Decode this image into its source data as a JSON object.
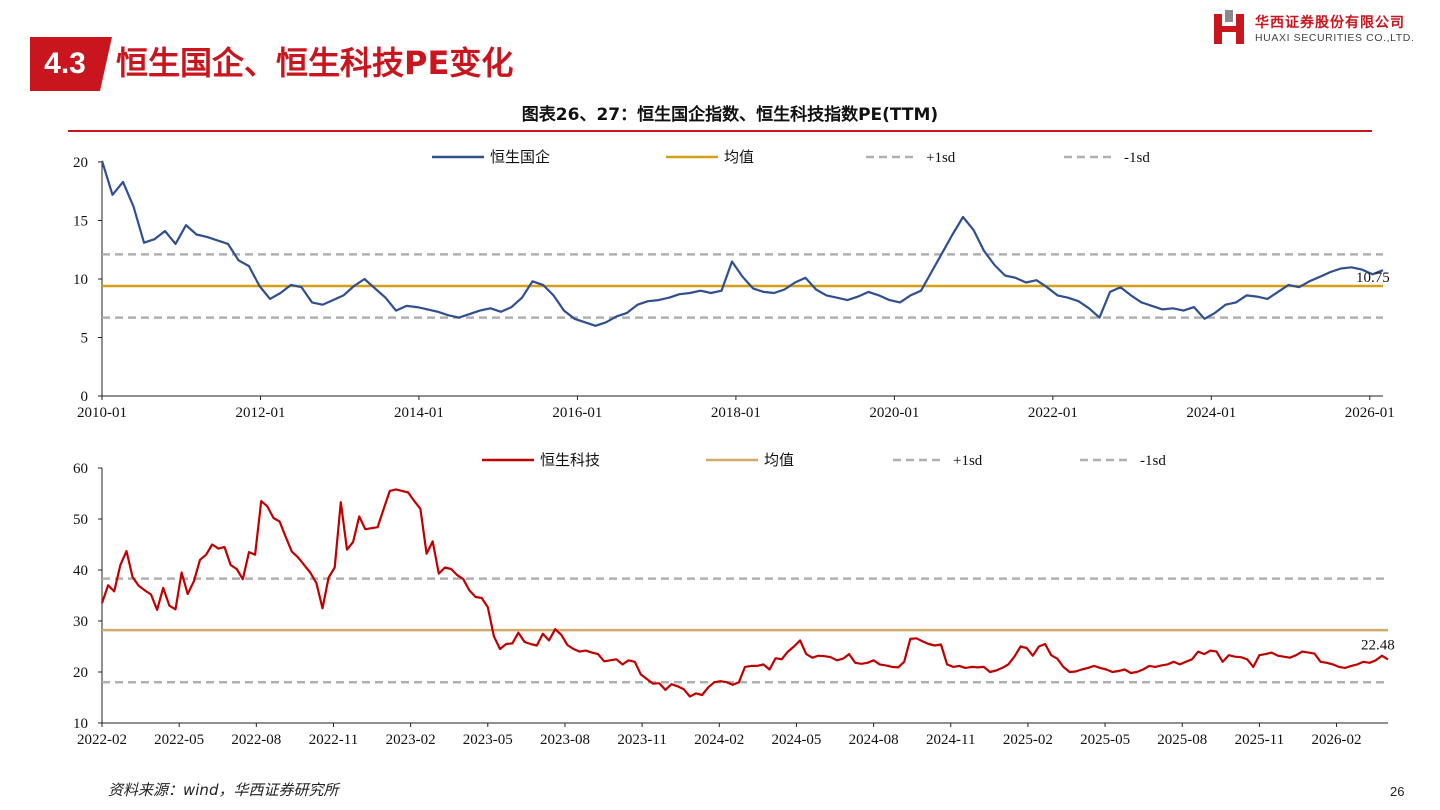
{
  "header": {
    "section_number": "4.3",
    "section_title": "恒生国企、恒生科技PE变化",
    "logo_cn": "华西证券股份有限公司",
    "logo_en": "HUAXI SECURITIES CO.,LTD."
  },
  "chart_heading": "图表26、27：恒生国企指数、恒生科技指数PE(TTM)",
  "footer": {
    "source": "资料来源：wind，华西证券研究所",
    "page_number": "26"
  },
  "colors": {
    "brand_red": "#c9151e",
    "hscei_line": "#2f4f8f",
    "hstech_line": "#c00000",
    "mean_line_top": "#d4a017",
    "mean_line_bottom": "#d2aa6c",
    "sd_line": "#b0b0b0"
  },
  "chart_data": [
    {
      "type": "line",
      "series": [
        {
          "name": "恒生国企",
          "x_start": "2010-01",
          "x_end": "2026-03",
          "values": [
            20.1,
            17.2,
            18.3,
            16.2,
            13.1,
            13.4,
            14.1,
            13.0,
            14.6,
            13.8,
            13.6,
            13.3,
            13.0,
            11.6,
            11.1,
            9.4,
            8.3,
            8.8,
            9.5,
            9.3,
            8.0,
            7.8,
            8.2,
            8.6,
            9.4,
            10.0,
            9.2,
            8.4,
            7.3,
            7.7,
            7.6,
            7.4,
            7.2,
            6.9,
            6.7,
            7.0,
            7.3,
            7.5,
            7.2,
            7.6,
            8.4,
            9.8,
            9.5,
            8.6,
            7.3,
            6.6,
            6.3,
            6.0,
            6.3,
            6.8,
            7.1,
            7.8,
            8.1,
            8.2,
            8.4,
            8.7,
            8.8,
            9.0,
            8.8,
            9.0,
            11.5,
            10.2,
            9.2,
            8.9,
            8.8,
            9.1,
            9.7,
            10.1,
            9.1,
            8.6,
            8.4,
            8.2,
            8.5,
            8.9,
            8.6,
            8.2,
            8.0,
            8.6,
            9.0,
            10.6,
            12.2,
            13.8,
            15.3,
            14.2,
            12.4,
            11.2,
            10.3,
            10.1,
            9.7,
            9.9,
            9.3,
            8.6,
            8.4,
            8.1,
            7.5,
            6.7,
            8.9,
            9.3,
            8.6,
            8.0,
            7.7,
            7.4,
            7.5,
            7.3,
            7.6,
            6.6,
            7.1,
            7.8,
            8.0,
            8.6,
            8.5,
            8.3,
            8.9,
            9.5,
            9.3,
            9.8,
            10.2,
            10.6,
            10.9,
            11.0,
            10.8,
            10.4,
            10.75
          ]
        }
      ],
      "mean": 9.4,
      "plus_1sd": 12.1,
      "minus_1sd": 6.7,
      "legend": [
        "恒生国企",
        "均值",
        "+1sd",
        "-1sd"
      ],
      "x_ticks": [
        "2010-01",
        "2012-01",
        "2014-01",
        "2016-01",
        "2018-01",
        "2020-01",
        "2022-01",
        "2024-01",
        "2026-01"
      ],
      "y_ticks": [
        0,
        5,
        10,
        15,
        20
      ],
      "ylim": [
        0,
        20
      ],
      "last_value_label": "10.75",
      "legend_position": "top"
    },
    {
      "type": "line",
      "series": [
        {
          "name": "恒生科技",
          "x_start": "2022-02",
          "x_end": "2026-04",
          "values": [
            33.5,
            37.0,
            35.8,
            41.0,
            43.7,
            38.6,
            36.9,
            36.0,
            35.2,
            32.2,
            36.5,
            33.0,
            32.3,
            39.5,
            35.3,
            37.8,
            42.0,
            43.0,
            45.0,
            44.2,
            44.5,
            41.0,
            40.2,
            38.2,
            43.5,
            43.0,
            53.5,
            52.5,
            50.2,
            49.5,
            46.5,
            43.6,
            42.5,
            41.0,
            39.5,
            37.5,
            32.5,
            38.5,
            40.5,
            53.3,
            44.0,
            45.5,
            50.5,
            48.0,
            48.2,
            48.4,
            52.0,
            55.5,
            55.8,
            55.5,
            55.2,
            53.5,
            52.0,
            43.2,
            45.6,
            39.3,
            40.5,
            40.2,
            39.0,
            38.2,
            36.0,
            34.7,
            34.5,
            32.7,
            27.0,
            24.5,
            25.5,
            25.6,
            27.7,
            25.9,
            25.5,
            25.2,
            27.5,
            26.2,
            28.4,
            27.3,
            25.3,
            24.5,
            24.0,
            24.2,
            23.8,
            23.5,
            22.1,
            22.3,
            22.5,
            21.5,
            22.3,
            22.0,
            19.5,
            18.6,
            17.7,
            17.8,
            16.5,
            17.6,
            17.2,
            16.6,
            15.2,
            15.8,
            15.5,
            17.0,
            18.0,
            18.2,
            18.0,
            17.5,
            18.0,
            21.0,
            21.2,
            21.2,
            21.5,
            20.5,
            22.7,
            22.5,
            24.0,
            25.0,
            26.2,
            23.5,
            22.8,
            23.2,
            23.1,
            22.9,
            22.3,
            22.6,
            23.5,
            21.8,
            21.6,
            21.8,
            22.3,
            21.5,
            21.3,
            21.0,
            20.9,
            22.0,
            26.5,
            26.6,
            26.0,
            25.5,
            25.2,
            25.4,
            21.5,
            21.0,
            21.2,
            20.8,
            21.0,
            20.9,
            21.0,
            20.0,
            20.3,
            20.8,
            21.5,
            23.0,
            25.0,
            24.7,
            23.2,
            25.0,
            25.5,
            23.3,
            22.6,
            21.0,
            20.0,
            20.1,
            20.5,
            20.8,
            21.2,
            20.8,
            20.5,
            20.0,
            20.2,
            20.5,
            19.8,
            20.0,
            20.5,
            21.2,
            21.0,
            21.3,
            21.5,
            22.0,
            21.5,
            22.0,
            22.5,
            24.0,
            23.5,
            24.2,
            24.0,
            22.0,
            23.3,
            23.0,
            22.9,
            22.5,
            21.0,
            23.3,
            23.5,
            23.8,
            23.2,
            23.0,
            22.8,
            23.3,
            24.0,
            23.8,
            23.6,
            22.0,
            21.8,
            21.5,
            21.0,
            20.8,
            21.2,
            21.5,
            22.0,
            21.8,
            22.3,
            23.2,
            22.48
          ]
        }
      ],
      "mean": 28.2,
      "plus_1sd": 38.3,
      "minus_1sd": 18.0,
      "legend": [
        "恒生科技",
        "均值",
        "+1sd",
        "-1sd"
      ],
      "x_ticks": [
        "2022-02",
        "2022-05",
        "2022-08",
        "2022-11",
        "2023-02",
        "2023-05",
        "2023-08",
        "2023-11",
        "2024-02",
        "2024-05",
        "2024-08",
        "2024-11",
        "2025-02",
        "2025-05",
        "2025-08",
        "2025-11",
        "2026-02"
      ],
      "y_ticks": [
        10,
        20,
        30,
        40,
        50,
        60
      ],
      "ylim": [
        10,
        60
      ],
      "last_value_label": "22.48",
      "legend_position": "top"
    }
  ]
}
